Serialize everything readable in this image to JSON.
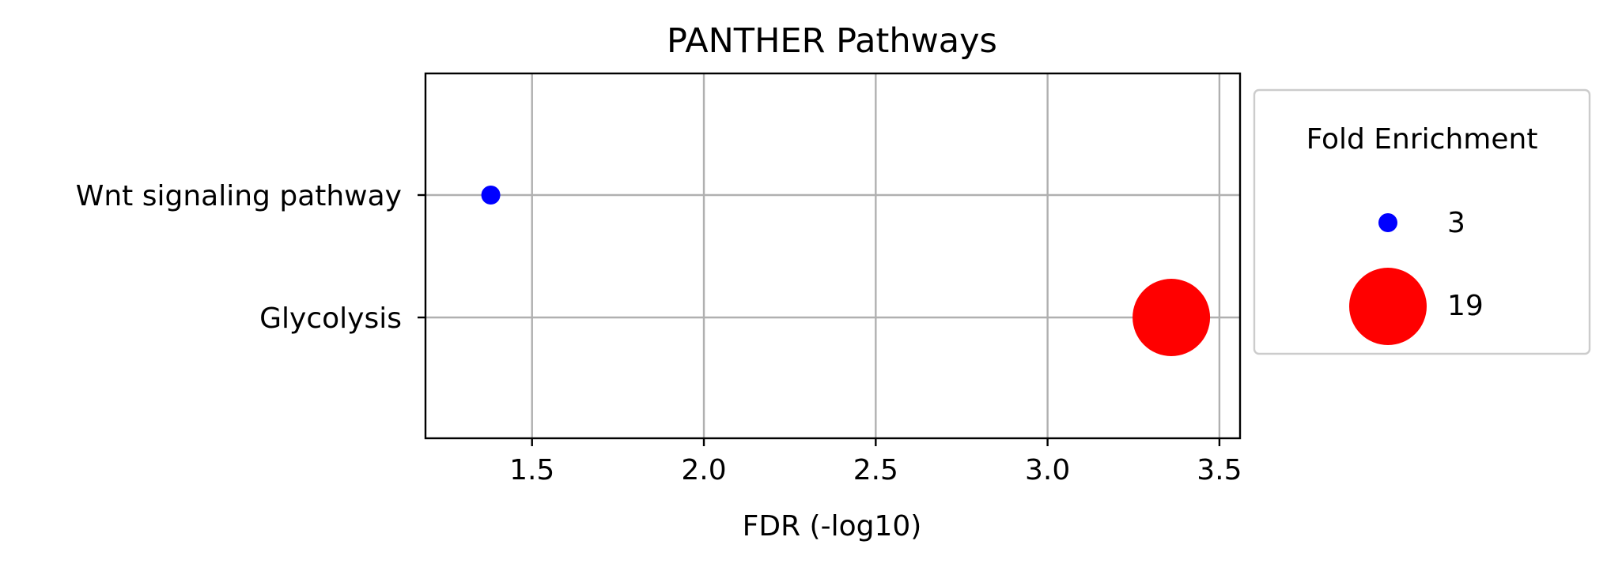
{
  "chart_data": {
    "type": "scatter",
    "title": "PANTHER Pathways",
    "xlabel": "FDR (-log10)",
    "ylabel": "",
    "xlim": [
      1.19,
      3.56
    ],
    "xticks": [
      1.5,
      2.0,
      2.5,
      3.0,
      3.5
    ],
    "xtick_labels": [
      "1.5",
      "2.0",
      "2.5",
      "3.0",
      "3.5"
    ],
    "categories": [
      "Wnt signaling pathway",
      "Glycolysis"
    ],
    "grid": true,
    "points": [
      {
        "category": "Wnt signaling pathway",
        "x": 1.38,
        "fold_enrichment": 3,
        "color": "#0000ff"
      },
      {
        "category": "Glycolysis",
        "x": 3.36,
        "fold_enrichment": 19,
        "color": "#ff0000"
      }
    ],
    "legend": {
      "title": "Fold Enrichment",
      "placement": "right, outside plot",
      "entries": [
        {
          "label": "3",
          "color": "#0000ff"
        },
        {
          "label": "19",
          "color": "#ff0000"
        }
      ]
    }
  }
}
